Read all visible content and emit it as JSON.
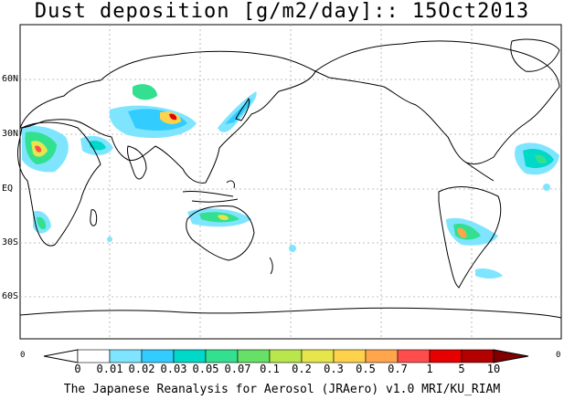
{
  "title": "Dust deposition [g/m2/day]:: 15Oct2013",
  "lat_labels": [
    "60N",
    "30N",
    "EQ",
    "30S",
    "60S"
  ],
  "colorbar": {
    "ticks": [
      "0",
      "0.01",
      "0.02",
      "0.03",
      "0.05",
      "0.07",
      "0.1",
      "0.2",
      "0.3",
      "0.5",
      "0.7",
      "1",
      "5",
      "10"
    ],
    "colors": [
      "#ffffff",
      "#7fe5ff",
      "#33ccff",
      "#00d8c8",
      "#33e090",
      "#66e066",
      "#b8e64c",
      "#e6e64c",
      "#ffd24c",
      "#ffa64c",
      "#ff4c4c",
      "#e60000",
      "#b30000",
      "#800000"
    ]
  },
  "edge_left_label": "0",
  "edge_right_label": "0",
  "footer": "The Japanese Reanalysis for Aerosol (JRAero) v1.0 MRI/KU_RIAM"
}
